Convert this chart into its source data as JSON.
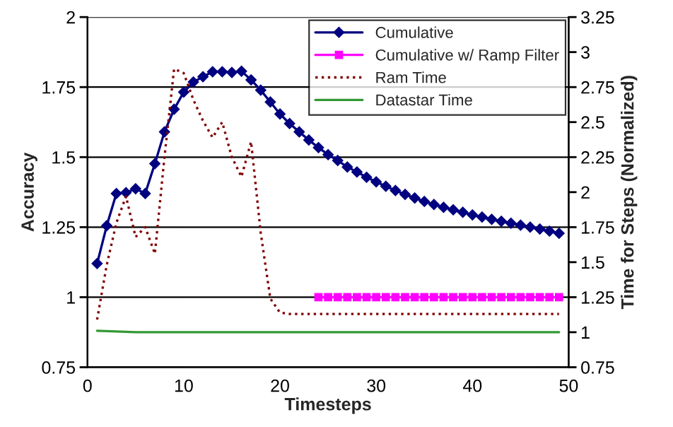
{
  "chart_data": {
    "type": "line",
    "xlabel": "Timesteps",
    "ylabel": "Accuracy",
    "y2label": "Time for Steps (Normalized)",
    "xlim": [
      0,
      50
    ],
    "xticks": [
      0,
      10,
      20,
      30,
      40,
      50
    ],
    "ylim": [
      0.75,
      2
    ],
    "yticks": [
      0.75,
      1,
      1.25,
      1.5,
      1.75,
      2
    ],
    "y2lim": [
      0.75,
      3.25
    ],
    "y2ticks": [
      0.75,
      1,
      1.25,
      1.5,
      1.75,
      2,
      2.25,
      2.5,
      2.75,
      3,
      3.25
    ],
    "grid": "y",
    "legend": "top right",
    "series": [
      {
        "name": "Cumulative",
        "color": "#000080",
        "marker": "diamond",
        "line_style": "solid",
        "x": [
          1,
          2,
          3,
          4,
          5,
          6,
          7,
          8,
          9,
          10,
          11,
          12,
          13,
          14,
          15,
          16,
          17,
          18,
          19,
          20,
          21,
          22,
          23,
          24,
          25,
          26,
          27,
          28,
          29,
          30,
          31,
          32,
          33,
          34,
          35,
          36,
          37,
          38,
          39,
          40,
          41,
          42,
          43,
          44,
          45,
          46,
          47,
          48,
          49
        ],
        "values": [
          1.12,
          1.255,
          1.37,
          1.373,
          1.387,
          1.37,
          1.477,
          1.59,
          1.671,
          1.732,
          1.768,
          1.787,
          1.805,
          1.805,
          1.802,
          1.807,
          1.776,
          1.739,
          1.697,
          1.654,
          1.62,
          1.59,
          1.561,
          1.534,
          1.509,
          1.488,
          1.465,
          1.447,
          1.428,
          1.412,
          1.396,
          1.381,
          1.367,
          1.354,
          1.342,
          1.331,
          1.321,
          1.312,
          1.303,
          1.294,
          1.286,
          1.278,
          1.271,
          1.264,
          1.257,
          1.25,
          1.243,
          1.236,
          1.228
        ]
      },
      {
        "name": "Cumulative w/ Ramp Filter",
        "color": "#ff00ff",
        "marker": "square",
        "line_style": "solid",
        "x": [
          24,
          25,
          26,
          27,
          28,
          29,
          30,
          31,
          32,
          33,
          34,
          35,
          36,
          37,
          38,
          39,
          40,
          41,
          42,
          43,
          44,
          45,
          46,
          47,
          48,
          49
        ],
        "values": [
          1,
          1,
          1,
          1,
          1,
          1,
          1,
          1,
          1,
          1,
          1,
          1,
          1,
          1,
          1,
          1,
          1,
          1,
          1,
          1,
          1,
          1,
          1,
          1,
          1,
          1
        ]
      },
      {
        "name": "Ram Time",
        "color": "#800000",
        "marker": "none",
        "line_style": "dotted",
        "axis": "y2",
        "x": [
          1,
          2,
          3,
          4,
          5,
          6,
          7,
          8,
          9,
          10,
          11,
          12,
          13,
          14,
          15,
          16,
          17,
          18,
          19,
          20,
          21,
          25,
          30,
          35,
          40,
          45,
          49
        ],
        "values": [
          1.09,
          1.48,
          1.78,
          1.97,
          1.68,
          1.75,
          1.56,
          2.25,
          2.88,
          2.85,
          2.66,
          2.51,
          2.39,
          2.5,
          2.25,
          2.11,
          2.36,
          1.71,
          1.24,
          1.14,
          1.13,
          1.13,
          1.13,
          1.13,
          1.13,
          1.13,
          1.13
        ]
      },
      {
        "name": "Datastar Time",
        "color": "#339933",
        "marker": "none",
        "line_style": "solid",
        "axis": "y2",
        "x": [
          1,
          5,
          10,
          20,
          30,
          40,
          49
        ],
        "values": [
          1.01,
          1.0,
          1.0,
          1.0,
          1.0,
          1.0,
          1.0
        ]
      }
    ]
  }
}
